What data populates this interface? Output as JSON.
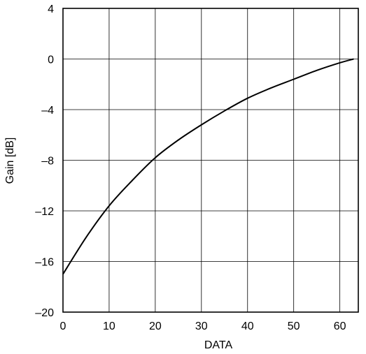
{
  "chart_data": {
    "type": "line",
    "title": "",
    "xlabel": "DATA",
    "ylabel": "Gain [dB]",
    "xlim": [
      0,
      64
    ],
    "ylim": [
      -20,
      4
    ],
    "grid": true,
    "x_ticks": [
      0,
      10,
      20,
      30,
      40,
      50,
      60
    ],
    "x_tick_labels": [
      "0",
      "10",
      "20",
      "30",
      "40",
      "50",
      "60"
    ],
    "y_ticks": [
      4,
      0,
      -4,
      -8,
      -12,
      -16,
      -20
    ],
    "y_tick_labels": [
      "4",
      "0",
      "–4",
      "–8",
      "–12",
      "–16",
      "–20"
    ],
    "series": [
      {
        "x": [
          0,
          5,
          10,
          15,
          20,
          25,
          30,
          35,
          40,
          45,
          50,
          55,
          60,
          63
        ],
        "y": [
          -17.0,
          -14.1,
          -11.6,
          -9.6,
          -7.8,
          -6.4,
          -5.2,
          -4.1,
          -3.1,
          -2.3,
          -1.6,
          -0.9,
          -0.3,
          0.0
        ]
      }
    ]
  }
}
